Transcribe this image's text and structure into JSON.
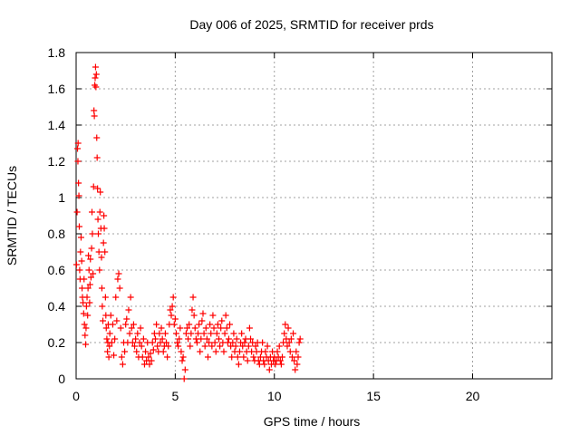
{
  "chart_data": {
    "type": "scatter",
    "title": "Day 006 of 2025, SRMTID for receiver prds",
    "xlabel": "GPS time / hours",
    "ylabel": "SRMTID / TECUs",
    "xlim": [
      0,
      24
    ],
    "ylim": [
      0,
      1.8
    ],
    "x_ticks": [
      0,
      5,
      10,
      15,
      20
    ],
    "y_ticks": [
      0,
      0.2,
      0.4,
      0.6,
      0.8,
      1,
      1.2,
      1.4,
      1.6,
      1.8
    ],
    "x_tick_labels": [
      "0",
      "5",
      "10",
      "15",
      "20"
    ],
    "y_tick_labels": [
      "0",
      "0.2",
      "0.4",
      "0.6",
      "0.8",
      "1",
      "1.2",
      "1.4",
      "1.6",
      "1.8"
    ],
    "grid": true,
    "marker": "plus",
    "series": [
      {
        "name": "SRMTID",
        "color": "#ff0000",
        "points": [
          [
            0.02,
            0.63
          ],
          [
            0.05,
            0.92
          ],
          [
            0.07,
            1.27
          ],
          [
            0.09,
            1.2
          ],
          [
            0.1,
            1.3
          ],
          [
            0.12,
            1.08
          ],
          [
            0.14,
            1.01
          ],
          [
            0.16,
            0.84
          ],
          [
            0.18,
            0.6
          ],
          [
            0.2,
            0.55
          ],
          [
            0.22,
            0.7
          ],
          [
            0.25,
            0.78
          ],
          [
            0.28,
            0.65
          ],
          [
            0.3,
            0.5
          ],
          [
            0.32,
            0.45
          ],
          [
            0.35,
            0.42
          ],
          [
            0.38,
            0.36
          ],
          [
            0.4,
            0.55
          ],
          [
            0.42,
            0.3
          ],
          [
            0.45,
            0.24
          ],
          [
            0.48,
            0.19
          ],
          [
            0.5,
            0.28
          ],
          [
            0.52,
            0.4
          ],
          [
            0.55,
            0.45
          ],
          [
            0.58,
            0.35
          ],
          [
            0.6,
            0.5
          ],
          [
            0.62,
            0.68
          ],
          [
            0.65,
            0.6
          ],
          [
            0.68,
            0.42
          ],
          [
            0.7,
            0.52
          ],
          [
            0.72,
            0.66
          ],
          [
            0.75,
            0.56
          ],
          [
            0.78,
            0.72
          ],
          [
            0.8,
            0.92
          ],
          [
            0.82,
            0.8
          ],
          [
            0.85,
            0.58
          ],
          [
            0.88,
            1.06
          ],
          [
            0.9,
            1.48
          ],
          [
            0.92,
            1.45
          ],
          [
            0.94,
            1.62
          ],
          [
            0.96,
            1.66
          ],
          [
            0.98,
            1.72
          ],
          [
            1.0,
            1.61
          ],
          [
            1.02,
            1.68
          ],
          [
            1.04,
            1.33
          ],
          [
            1.06,
            1.22
          ],
          [
            1.08,
            1.05
          ],
          [
            1.1,
            0.88
          ],
          [
            1.12,
            0.8
          ],
          [
            1.15,
            0.7
          ],
          [
            1.18,
            0.6
          ],
          [
            1.2,
            0.92
          ],
          [
            1.22,
            1.03
          ],
          [
            1.25,
            0.83
          ],
          [
            1.28,
            0.67
          ],
          [
            1.3,
            0.5
          ],
          [
            1.32,
            0.4
          ],
          [
            1.35,
            0.32
          ],
          [
            1.38,
            0.75
          ],
          [
            1.4,
            0.9
          ],
          [
            1.42,
            0.83
          ],
          [
            1.45,
            0.7
          ],
          [
            1.48,
            0.45
          ],
          [
            1.5,
            0.35
          ],
          [
            1.52,
            0.28
          ],
          [
            1.55,
            0.22
          ],
          [
            1.58,
            0.15
          ],
          [
            1.6,
            0.2
          ],
          [
            1.62,
            0.3
          ],
          [
            1.65,
            0.12
          ],
          [
            1.68,
            0.18
          ],
          [
            1.7,
            0.25
          ],
          [
            1.75,
            0.35
          ],
          [
            1.8,
            0.2
          ],
          [
            1.85,
            0.3
          ],
          [
            1.9,
            0.13
          ],
          [
            1.95,
            0.22
          ],
          [
            2.0,
            0.45
          ],
          [
            2.05,
            0.32
          ],
          [
            2.1,
            0.55
          ],
          [
            2.15,
            0.58
          ],
          [
            2.2,
            0.5
          ],
          [
            2.25,
            0.28
          ],
          [
            2.3,
            0.12
          ],
          [
            2.35,
            0.08
          ],
          [
            2.4,
            0.2
          ],
          [
            2.45,
            0.15
          ],
          [
            2.5,
            0.3
          ],
          [
            2.55,
            0.33
          ],
          [
            2.6,
            0.2
          ],
          [
            2.65,
            0.38
          ],
          [
            2.7,
            0.25
          ],
          [
            2.75,
            0.45
          ],
          [
            2.8,
            0.28
          ],
          [
            2.85,
            0.2
          ],
          [
            2.9,
            0.3
          ],
          [
            2.95,
            0.18
          ],
          [
            3.0,
            0.22
          ],
          [
            3.05,
            0.15
          ],
          [
            3.1,
            0.25
          ],
          [
            3.15,
            0.12
          ],
          [
            3.2,
            0.2
          ],
          [
            3.25,
            0.28
          ],
          [
            3.3,
            0.18
          ],
          [
            3.35,
            0.12
          ],
          [
            3.4,
            0.22
          ],
          [
            3.45,
            0.08
          ],
          [
            3.5,
            0.15
          ],
          [
            3.55,
            0.1
          ],
          [
            3.6,
            0.2
          ],
          [
            3.65,
            0.12
          ],
          [
            3.7,
            0.08
          ],
          [
            3.75,
            0.14
          ],
          [
            3.8,
            0.1
          ],
          [
            3.85,
            0.2
          ],
          [
            3.9,
            0.16
          ],
          [
            3.95,
            0.25
          ],
          [
            4.0,
            0.22
          ],
          [
            4.05,
            0.3
          ],
          [
            4.1,
            0.18
          ],
          [
            4.15,
            0.15
          ],
          [
            4.2,
            0.25
          ],
          [
            4.25,
            0.2
          ],
          [
            4.3,
            0.28
          ],
          [
            4.35,
            0.22
          ],
          [
            4.4,
            0.15
          ],
          [
            4.45,
            0.18
          ],
          [
            4.5,
            0.25
          ],
          [
            4.55,
            0.2
          ],
          [
            4.6,
            0.12
          ],
          [
            4.65,
            0.18
          ],
          [
            4.7,
            0.3
          ],
          [
            4.75,
            0.38
          ],
          [
            4.8,
            0.35
          ],
          [
            4.85,
            0.4
          ],
          [
            4.9,
            0.45
          ],
          [
            4.95,
            0.3
          ],
          [
            5.0,
            0.33
          ],
          [
            5.05,
            0.25
          ],
          [
            5.1,
            0.2
          ],
          [
            5.15,
            0.18
          ],
          [
            5.2,
            0.22
          ],
          [
            5.25,
            0.28
          ],
          [
            5.3,
            0.15
          ],
          [
            5.35,
            0.1
          ],
          [
            5.4,
            0.12
          ],
          [
            5.45,
            0.0
          ],
          [
            5.5,
            0.05
          ],
          [
            5.55,
            0.25
          ],
          [
            5.6,
            0.28
          ],
          [
            5.65,
            0.22
          ],
          [
            5.7,
            0.3
          ],
          [
            5.75,
            0.18
          ],
          [
            5.8,
            0.25
          ],
          [
            5.85,
            0.38
          ],
          [
            5.9,
            0.45
          ],
          [
            5.95,
            0.35
          ],
          [
            6.0,
            0.28
          ],
          [
            6.05,
            0.22
          ],
          [
            6.1,
            0.2
          ],
          [
            6.15,
            0.25
          ],
          [
            6.2,
            0.3
          ],
          [
            6.25,
            0.15
          ],
          [
            6.3,
            0.22
          ],
          [
            6.35,
            0.32
          ],
          [
            6.4,
            0.36
          ],
          [
            6.45,
            0.25
          ],
          [
            6.5,
            0.18
          ],
          [
            6.55,
            0.28
          ],
          [
            6.6,
            0.22
          ],
          [
            6.65,
            0.12
          ],
          [
            6.7,
            0.2
          ],
          [
            6.75,
            0.3
          ],
          [
            6.8,
            0.25
          ],
          [
            6.85,
            0.18
          ],
          [
            6.9,
            0.35
          ],
          [
            6.95,
            0.28
          ],
          [
            7.0,
            0.2
          ],
          [
            7.05,
            0.15
          ],
          [
            7.1,
            0.25
          ],
          [
            7.15,
            0.3
          ],
          [
            7.2,
            0.22
          ],
          [
            7.25,
            0.18
          ],
          [
            7.3,
            0.28
          ],
          [
            7.35,
            0.32
          ],
          [
            7.4,
            0.2
          ],
          [
            7.45,
            0.15
          ],
          [
            7.5,
            0.25
          ],
          [
            7.55,
            0.35
          ],
          [
            7.6,
            0.28
          ],
          [
            7.65,
            0.2
          ],
          [
            7.7,
            0.22
          ],
          [
            7.75,
            0.3
          ],
          [
            7.8,
            0.18
          ],
          [
            7.85,
            0.12
          ],
          [
            7.9,
            0.2
          ],
          [
            7.95,
            0.25
          ],
          [
            8.0,
            0.15
          ],
          [
            8.05,
            0.18
          ],
          [
            8.1,
            0.22
          ],
          [
            8.15,
            0.12
          ],
          [
            8.2,
            0.08
          ],
          [
            8.25,
            0.15
          ],
          [
            8.3,
            0.2
          ],
          [
            8.35,
            0.25
          ],
          [
            8.4,
            0.18
          ],
          [
            8.45,
            0.12
          ],
          [
            8.5,
            0.2
          ],
          [
            8.55,
            0.22
          ],
          [
            8.6,
            0.15
          ],
          [
            8.65,
            0.1
          ],
          [
            8.7,
            0.18
          ],
          [
            8.75,
            0.28
          ],
          [
            8.8,
            0.22
          ],
          [
            8.85,
            0.15
          ],
          [
            8.9,
            0.2
          ],
          [
            8.95,
            0.12
          ],
          [
            9.0,
            0.1
          ],
          [
            9.05,
            0.18
          ],
          [
            9.1,
            0.15
          ],
          [
            9.15,
            0.2
          ],
          [
            9.2,
            0.1
          ],
          [
            9.25,
            0.08
          ],
          [
            9.3,
            0.12
          ],
          [
            9.35,
            0.15
          ],
          [
            9.4,
            0.2
          ],
          [
            9.45,
            0.1
          ],
          [
            9.5,
            0.08
          ],
          [
            9.55,
            0.15
          ],
          [
            9.6,
            0.12
          ],
          [
            9.65,
            0.18
          ],
          [
            9.7,
            0.1
          ],
          [
            9.75,
            0.05
          ],
          [
            9.8,
            0.12
          ],
          [
            9.85,
            0.08
          ],
          [
            9.9,
            0.15
          ],
          [
            9.95,
            0.1
          ],
          [
            10.0,
            0.12
          ],
          [
            10.05,
            0.08
          ],
          [
            10.1,
            0.1
          ],
          [
            10.15,
            0.15
          ],
          [
            10.2,
            0.12
          ],
          [
            10.25,
            0.18
          ],
          [
            10.3,
            0.1
          ],
          [
            10.35,
            0.08
          ],
          [
            10.4,
            0.12
          ],
          [
            10.45,
            0.2
          ],
          [
            10.5,
            0.25
          ],
          [
            10.55,
            0.3
          ],
          [
            10.6,
            0.22
          ],
          [
            10.65,
            0.18
          ],
          [
            10.7,
            0.28
          ],
          [
            10.75,
            0.2
          ],
          [
            10.8,
            0.15
          ],
          [
            10.85,
            0.22
          ],
          [
            10.9,
            0.12
          ],
          [
            10.95,
            0.25
          ],
          [
            11.0,
            0.1
          ],
          [
            11.05,
            0.05
          ],
          [
            11.1,
            0.15
          ],
          [
            11.15,
            0.08
          ],
          [
            11.2,
            0.12
          ],
          [
            11.25,
            0.2
          ],
          [
            11.3,
            0.22
          ]
        ]
      }
    ]
  }
}
